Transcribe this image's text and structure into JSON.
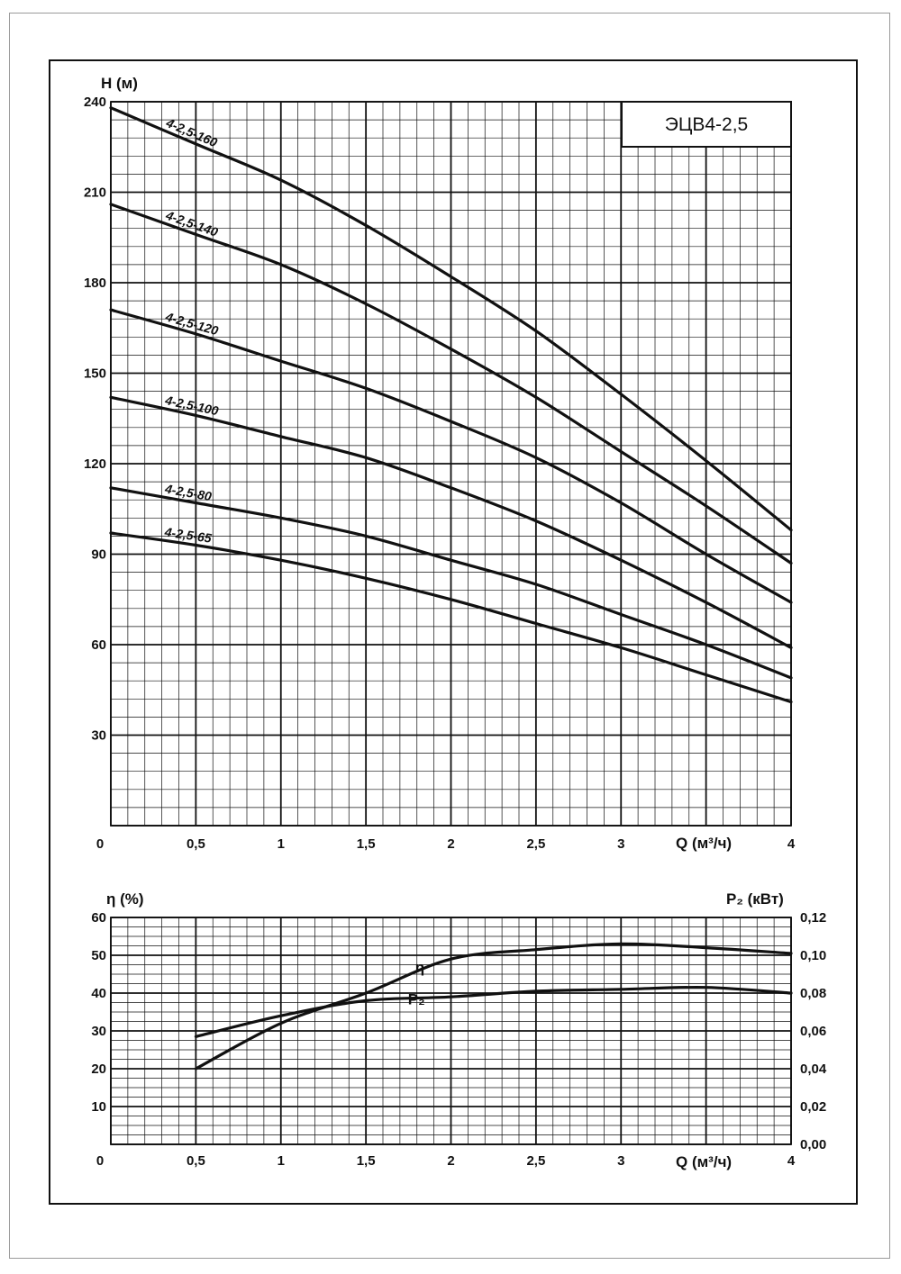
{
  "chart_data": [
    {
      "type": "line",
      "title": "ЭЦВ4-2,5",
      "xlabel": "Q (м³/ч)",
      "ylabel": "H (м)",
      "xlim": [
        0,
        4
      ],
      "ylim": [
        0,
        240
      ],
      "x_ticks": [
        "0",
        "0,5",
        "1",
        "1,5",
        "2",
        "2,5",
        "3",
        "4"
      ],
      "y_ticks": [
        "240",
        "210",
        "180",
        "150",
        "120",
        "90",
        "60",
        "30"
      ],
      "grid": true,
      "series": [
        {
          "name": "4-2,5-160",
          "x": [
            0,
            0.5,
            1,
            1.5,
            2,
            2.5,
            3,
            3.5,
            4
          ],
          "y": [
            238,
            226,
            214,
            199,
            182,
            164,
            143,
            121,
            98
          ]
        },
        {
          "name": "4-2,5-140",
          "x": [
            0,
            0.5,
            1,
            1.5,
            2,
            2.5,
            3,
            3.5,
            4
          ],
          "y": [
            206,
            196,
            186,
            173,
            158,
            142,
            124,
            106,
            87
          ]
        },
        {
          "name": "4-2,5-120",
          "x": [
            0,
            0.5,
            1,
            1.5,
            2,
            2.5,
            3,
            3.5,
            4
          ],
          "y": [
            171,
            163,
            154,
            145,
            134,
            122,
            107,
            90,
            74
          ]
        },
        {
          "name": "4-2,5-100",
          "x": [
            0,
            0.5,
            1,
            1.5,
            2,
            2.5,
            3,
            3.5,
            4
          ],
          "y": [
            142,
            136,
            129,
            122,
            112,
            101,
            88,
            74,
            59
          ]
        },
        {
          "name": "4-2,5-80",
          "x": [
            0,
            0.5,
            1,
            1.5,
            2,
            2.5,
            3,
            3.5,
            4
          ],
          "y": [
            112,
            107,
            102,
            96,
            88,
            80,
            70,
            60,
            49
          ]
        },
        {
          "name": "4-2,5-65",
          "x": [
            0,
            0.5,
            1,
            1.5,
            2,
            2.5,
            3,
            3.5,
            4
          ],
          "y": [
            97,
            93,
            88,
            82,
            75,
            67,
            59,
            50,
            41
          ]
        }
      ]
    },
    {
      "type": "line",
      "xlabel": "Q (м³/ч)",
      "ylabel": "η (%)",
      "y2label": "P₂ (кВт)",
      "xlim": [
        0,
        4
      ],
      "ylim": [
        0,
        60
      ],
      "y2lim": [
        0,
        0.12
      ],
      "x_ticks": [
        "0",
        "0,5",
        "1",
        "1,5",
        "2",
        "2,5",
        "3",
        "4"
      ],
      "y_ticks": [
        "60",
        "50",
        "40",
        "30",
        "20",
        "10"
      ],
      "y2_ticks": [
        "0,12",
        "0,10",
        "0,08",
        "0,06",
        "0,04",
        "0,02",
        "0,00"
      ],
      "grid": true,
      "series": [
        {
          "name": "η",
          "axis": "left",
          "x": [
            0.5,
            1,
            1.5,
            2,
            2.5,
            3,
            3.5,
            4
          ],
          "y": [
            20,
            32,
            40,
            49,
            51.5,
            53,
            52,
            50.5
          ]
        },
        {
          "name": "P₂",
          "axis": "right",
          "x": [
            0.5,
            1,
            1.5,
            2,
            2.5,
            3,
            3.5,
            4
          ],
          "y": [
            0.057,
            0.068,
            0.076,
            0.078,
            0.081,
            0.082,
            0.083,
            0.08
          ]
        }
      ]
    }
  ]
}
